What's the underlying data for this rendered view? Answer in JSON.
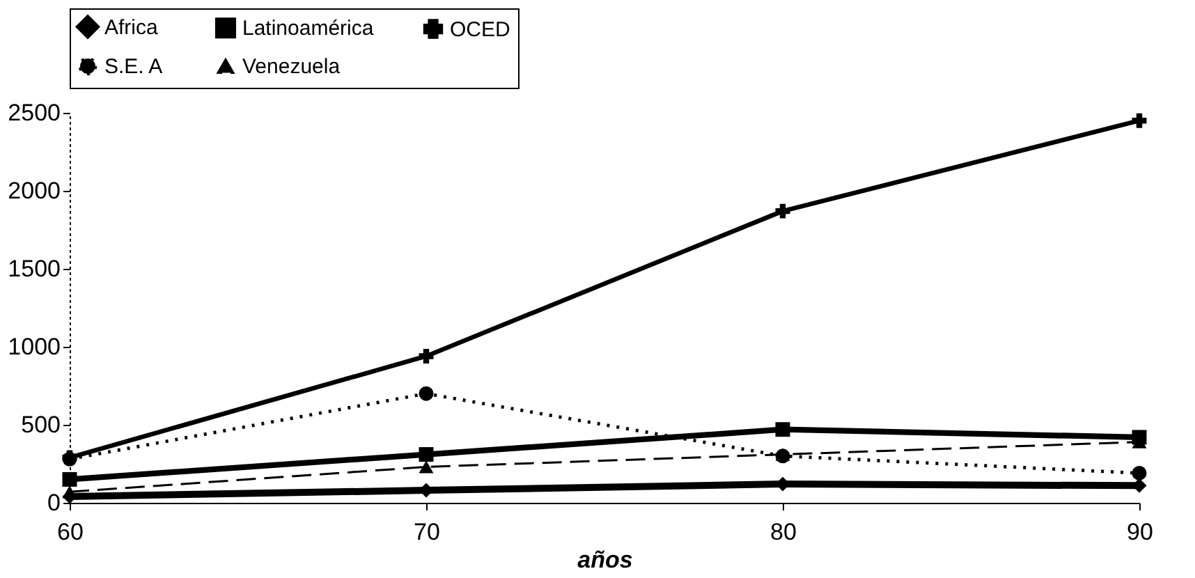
{
  "chart_data": {
    "type": "line",
    "xlabel": "años",
    "x": [
      60,
      70,
      80,
      90
    ],
    "series": [
      {
        "name": "Africa",
        "color": "#000000",
        "marker": "diamond",
        "line_style": "solid",
        "values": [
          40,
          80,
          120,
          110
        ]
      },
      {
        "name": "Latinoamérica",
        "color": "#000000",
        "marker": "square",
        "line_style": "solid",
        "values": [
          150,
          310,
          470,
          420
        ]
      },
      {
        "name": "OCED",
        "color": "#000000",
        "marker": "cross",
        "line_style": "solid",
        "values": [
          290,
          940,
          1870,
          2450
        ]
      },
      {
        "name": "S.E. A",
        "color": "#000000",
        "marker": "circle",
        "line_style": "dotted",
        "values": [
          280,
          700,
          300,
          190
        ]
      },
      {
        "name": "Venezuela",
        "color": "#000000",
        "marker": "triangle",
        "line_style": "dashed",
        "values": [
          70,
          230,
          310,
          390
        ]
      }
    ],
    "xlim": [
      60,
      90
    ],
    "xticks": [
      60,
      70,
      80,
      90
    ],
    "ylim": [
      0,
      2500
    ],
    "yticks": [
      0,
      500,
      1000,
      1500,
      2000,
      2500
    ],
    "grid": false,
    "legend": "top"
  }
}
